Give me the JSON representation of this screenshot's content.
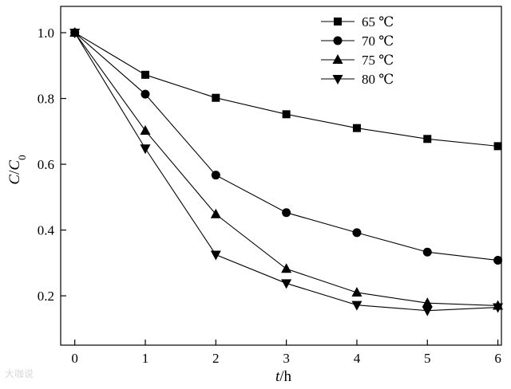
{
  "chart_data": {
    "type": "line",
    "xlabel_italic": "t",
    "xlabel_rest": "/h",
    "ylabel_c": "C",
    "ylabel_slash": "/",
    "ylabel_c0": "C",
    "ylabel_sub": "0",
    "xlim": [
      -0.2,
      6.05
    ],
    "ylim": [
      0.05,
      1.08
    ],
    "x_ticks": [
      0,
      1,
      2,
      3,
      4,
      5,
      6
    ],
    "y_ticks": [
      0.2,
      0.4,
      0.6,
      0.8,
      1.0
    ],
    "x_tick_labels": [
      "0",
      "1",
      "2",
      "3",
      "4",
      "5",
      "6"
    ],
    "y_tick_labels": [
      "0.2",
      "0.4",
      "0.6",
      "0.8",
      "1.0"
    ],
    "grid": false,
    "legend_position": "top-right",
    "x": [
      0,
      1,
      2,
      3,
      4,
      5,
      6
    ],
    "series": [
      {
        "name": "65 ℃",
        "marker": "square",
        "values": [
          1.0,
          0.872,
          0.802,
          0.752,
          0.71,
          0.677,
          0.655
        ]
      },
      {
        "name": "70 ℃",
        "marker": "circle",
        "values": [
          1.0,
          0.813,
          0.567,
          0.453,
          0.392,
          0.333,
          0.308
        ]
      },
      {
        "name": "75 ℃",
        "marker": "triangle-up",
        "values": [
          1.0,
          0.702,
          0.448,
          0.282,
          0.21,
          0.178,
          0.17
        ]
      },
      {
        "name": "80 ℃",
        "marker": "triangle-down",
        "values": [
          1.0,
          0.648,
          0.325,
          0.238,
          0.172,
          0.155,
          0.165
        ]
      }
    ]
  },
  "watermark": "大咖说"
}
